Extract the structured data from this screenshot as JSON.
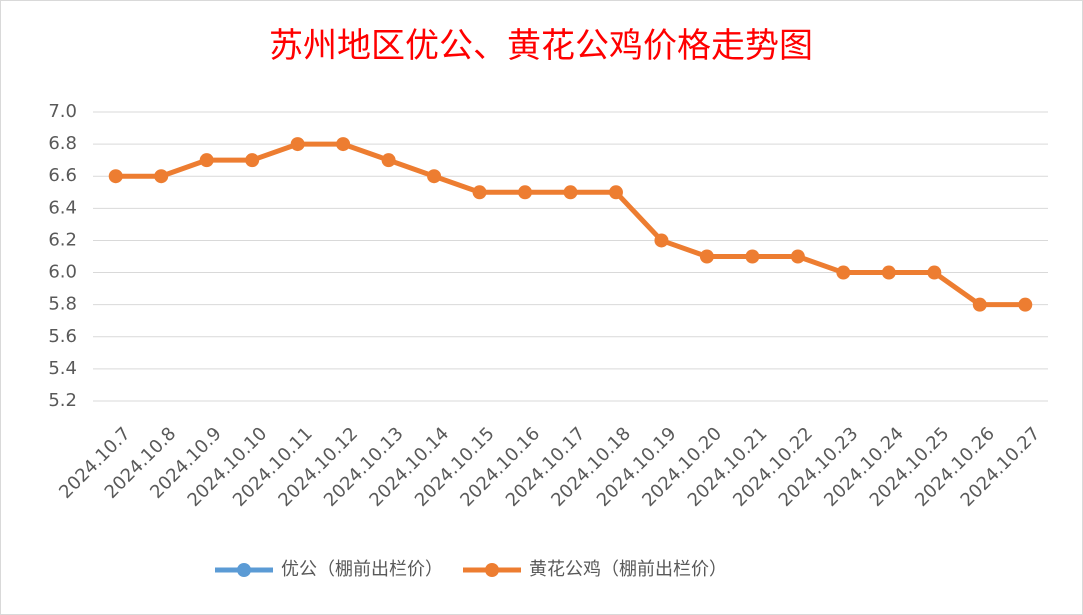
{
  "chart_data": {
    "type": "line",
    "title": "苏州地区优公、黄花公鸡价格走势图",
    "categories": [
      "2024.10.7",
      "2024.10.8",
      "2024.10.9",
      "2024.10.10",
      "2024.10.11",
      "2024.10.12",
      "2024.10.13",
      "2024.10.14",
      "2024.10.15",
      "2024.10.16",
      "2024.10.17",
      "2024.10.18",
      "2024.10.19",
      "2024.10.20",
      "2024.10.21",
      "2024.10.22",
      "2024.10.23",
      "2024.10.24",
      "2024.10.25",
      "2024.10.26",
      "2024.10.27"
    ],
    "series": [
      {
        "name": "优公（棚前出栏价）",
        "color": "#5b9bd5",
        "values": [
          null,
          null,
          null,
          null,
          null,
          null,
          null,
          null,
          null,
          null,
          null,
          null,
          null,
          null,
          null,
          null,
          null,
          null,
          null,
          null,
          null
        ]
      },
      {
        "name": "黄花公鸡（棚前出栏价）",
        "color": "#ed7d31",
        "values": [
          6.6,
          6.6,
          6.7,
          6.7,
          6.8,
          6.8,
          6.7,
          6.6,
          6.5,
          6.5,
          6.5,
          6.5,
          6.2,
          6.1,
          6.1,
          6.1,
          6.0,
          6.0,
          6.0,
          5.8,
          5.8
        ]
      }
    ],
    "ylim": [
      5.2,
      7.0
    ],
    "yticks": [
      {
        "value": 5.2,
        "label": "5.2"
      },
      {
        "value": 5.4,
        "label": "5.4"
      },
      {
        "value": 5.6,
        "label": "5.6"
      },
      {
        "value": 5.8,
        "label": "5.8"
      },
      {
        "value": 6,
        "label": "6.0"
      },
      {
        "value": 6.2,
        "label": "6.2"
      },
      {
        "value": 6.4,
        "label": "6.4"
      },
      {
        "value": 6.6,
        "label": "6.6"
      },
      {
        "value": 6.8,
        "label": "6.8"
      },
      {
        "value": 7,
        "label": "7.0"
      }
    ],
    "grid": true,
    "legend": "bottom"
  }
}
